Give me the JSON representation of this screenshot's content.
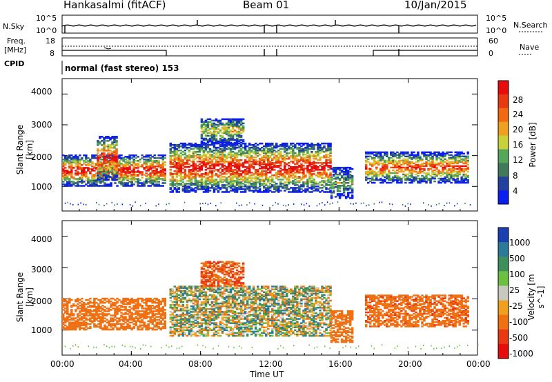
{
  "header": {
    "station": "Hankasalmi (fitACF)",
    "beam": "Beam 01",
    "date": "10/Jan/2015"
  },
  "summary_panels": {
    "nsky_label": "N.Sky",
    "nsearch_label": "N.Search",
    "nsky_ticks": [
      "10^5",
      "10^0"
    ],
    "nsearch_ticks": [
      "10^5",
      "10^0"
    ],
    "freq_label_1": "Freq.",
    "freq_label_2": "[MHz]",
    "freq_ticks": [
      "18",
      "8"
    ],
    "nave_label": "Nave",
    "nave_ticks": [
      "60",
      "0"
    ],
    "cpid_label": "CPID",
    "cpid_text": "normal (fast stereo) 153"
  },
  "colors": {
    "power_scale": [
      "#0a1ef0",
      "#23419f",
      "#3f7a5a",
      "#55a85a",
      "#c8d03c",
      "#f0a020",
      "#f06a14",
      "#e83a12",
      "#e80d0d"
    ],
    "velocity_scale": [
      "#1a3fb0",
      "#2c7a9a",
      "#3f8f5a",
      "#6cc040",
      "#c8c8c0",
      "#f0a020",
      "#f07014",
      "#e83a12",
      "#e80d0d"
    ]
  },
  "chart_data": [
    {
      "type": "heatmap",
      "title": "Power",
      "xlabel": "",
      "ylabel": "Slant Range [km]",
      "colorbar_label": "Power [dB]",
      "colorbar_ticks": [
        "28",
        "24",
        "20",
        "16",
        "12",
        "8",
        "4"
      ],
      "y_ticks": [
        "1000",
        "2000",
        "3000",
        "4000"
      ],
      "xlim": [
        0,
        24
      ],
      "ylim": [
        200,
        4500
      ],
      "echo_regions": [
        {
          "t0": 0.0,
          "t1": 6.0,
          "r0": 1000,
          "r1": 2000,
          "peak_db": 28
        },
        {
          "t0": 2.0,
          "t1": 3.2,
          "r0": 1200,
          "r1": 2600,
          "peak_db": 28
        },
        {
          "t0": 6.2,
          "t1": 15.5,
          "r0": 800,
          "r1": 2400,
          "peak_db": 28
        },
        {
          "t0": 8.0,
          "t1": 10.5,
          "r0": 2400,
          "r1": 3200,
          "peak_db": 16
        },
        {
          "t0": 15.5,
          "t1": 16.8,
          "r0": 600,
          "r1": 1600,
          "peak_db": 12
        },
        {
          "t0": 17.5,
          "t1": 23.5,
          "r0": 1100,
          "r1": 2100,
          "peak_db": 24
        }
      ]
    },
    {
      "type": "heatmap",
      "title": "Velocity",
      "xlabel": "Time UT",
      "ylabel": "Slant Range [km]",
      "colorbar_label": "Velocity [m s^-1]",
      "colorbar_ticks": [
        "1000",
        "500",
        "100",
        "25",
        "-25",
        "-100",
        "-500",
        "-1000"
      ],
      "y_ticks": [
        "1000",
        "2000",
        "3000",
        "4000"
      ],
      "x_ticks": [
        "00:00",
        "04:00",
        "08:00",
        "12:00",
        "16:00",
        "20:00",
        "00:00"
      ],
      "xlim": [
        0,
        24
      ],
      "ylim": [
        200,
        4500
      ],
      "echo_regions": [
        {
          "t0": 0.0,
          "t1": 6.0,
          "r0": 1000,
          "r1": 2000,
          "vel": -300
        },
        {
          "t0": 6.2,
          "t1": 15.5,
          "r0": 800,
          "r1": 2400,
          "vel": 0
        },
        {
          "t0": 8.0,
          "t1": 10.5,
          "r0": 2400,
          "r1": 3200,
          "vel": -500
        },
        {
          "t0": 15.5,
          "t1": 16.8,
          "r0": 600,
          "r1": 1600,
          "vel": -300
        },
        {
          "t0": 17.5,
          "t1": 23.5,
          "r0": 1100,
          "r1": 2100,
          "vel": -400
        }
      ]
    }
  ]
}
